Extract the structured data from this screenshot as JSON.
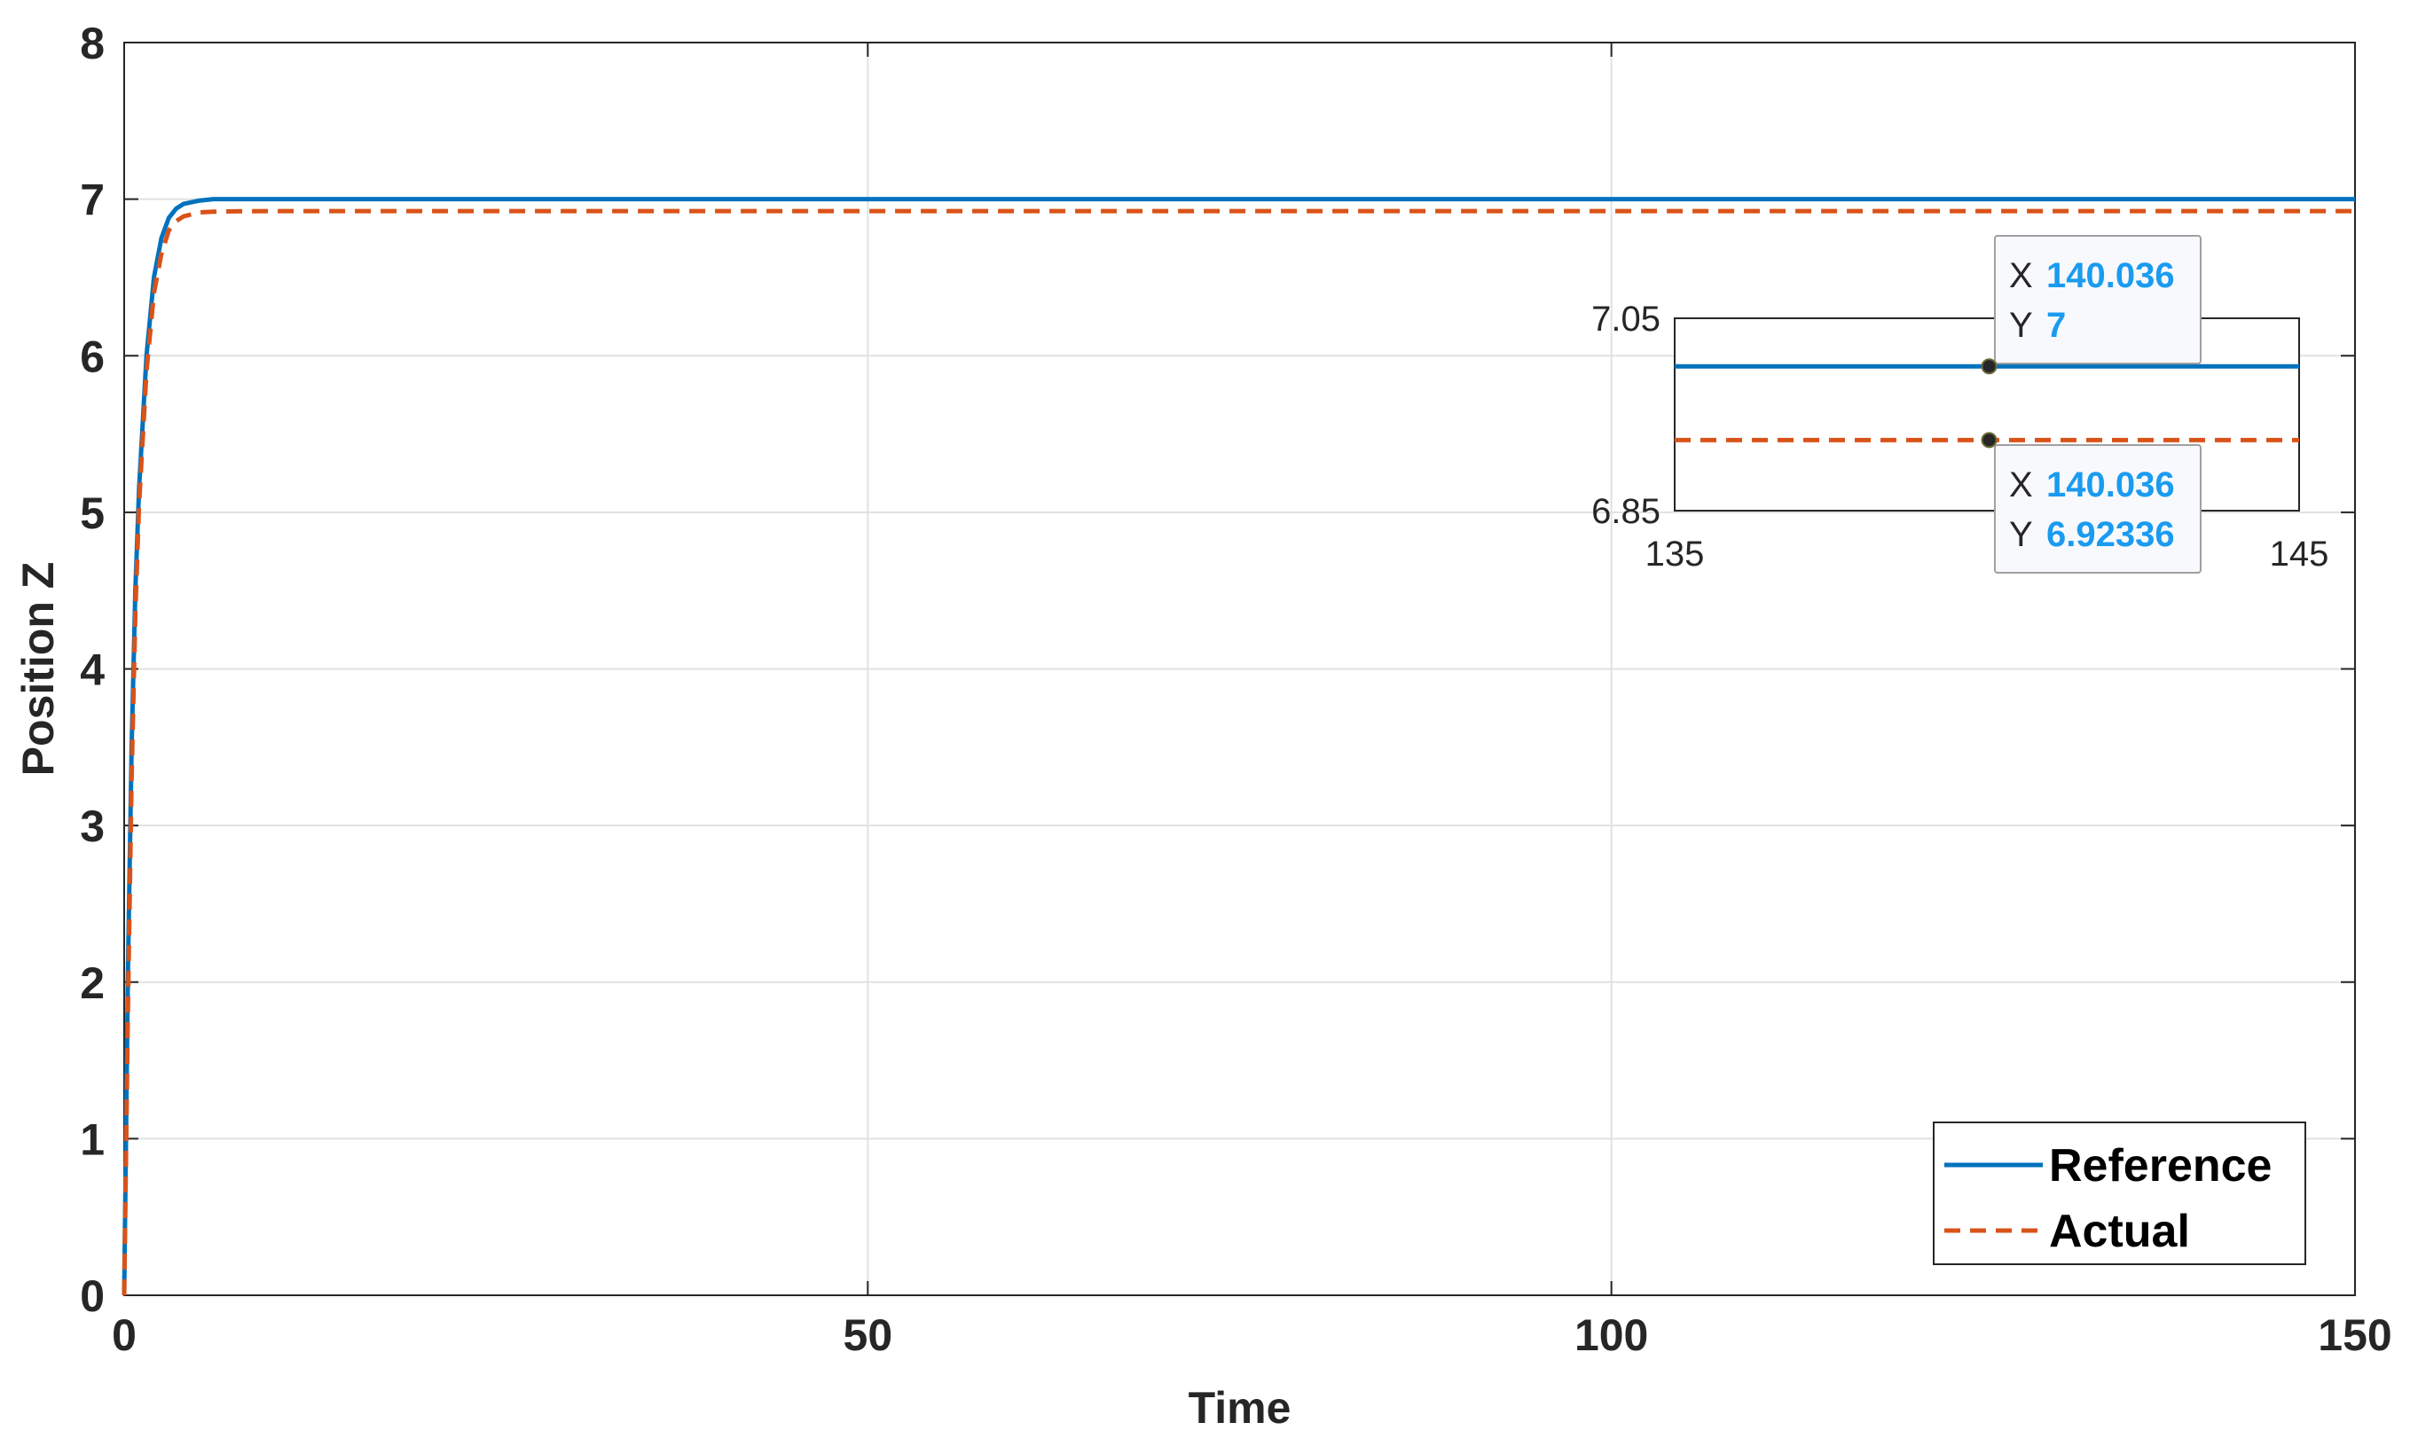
{
  "chart_data": [
    {
      "type": "line",
      "xlabel": "Time",
      "ylabel": "Position Z",
      "xlim": [
        0,
        150
      ],
      "ylim": [
        0,
        8
      ],
      "xticks": [
        0,
        50,
        100,
        150
      ],
      "yticks": [
        0,
        1,
        2,
        3,
        4,
        5,
        6,
        7,
        8
      ],
      "grid": true,
      "legend_position": "bottom-right",
      "series": [
        {
          "name": "Reference",
          "color": "#0072BD",
          "style": "solid",
          "x": [
            0,
            0.25,
            0.5,
            0.75,
            1,
            1.5,
            2,
            2.5,
            3,
            3.5,
            4,
            5,
            6,
            8,
            10,
            150
          ],
          "y": [
            0,
            2.05,
            3.5,
            4.5,
            5.15,
            6.0,
            6.5,
            6.75,
            6.88,
            6.94,
            6.97,
            6.99,
            7.0,
            7.0,
            7.0,
            7.0
          ]
        },
        {
          "name": "Actual",
          "color": "#D95319",
          "style": "dashed",
          "x": [
            0,
            0.25,
            0.5,
            0.75,
            1,
            1.5,
            2,
            2.5,
            3,
            3.5,
            4,
            5,
            6,
            8,
            10,
            150
          ],
          "y": [
            0,
            1.8,
            3.3,
            4.35,
            5.05,
            5.9,
            6.4,
            6.65,
            6.8,
            6.86,
            6.89,
            6.915,
            6.92,
            6.923,
            6.92336,
            6.92336
          ]
        }
      ],
      "datatips": [
        {
          "x_key": "X",
          "x": "140.036",
          "y_key": "Y",
          "y": "7"
        },
        {
          "x_key": "X",
          "x": "140.036",
          "y_key": "Y",
          "y": "6.92336"
        }
      ],
      "datatip_points": [
        {
          "x": 140.036,
          "y": 7
        },
        {
          "x": 140.036,
          "y": 6.92336
        }
      ]
    },
    {
      "type": "line",
      "inset": true,
      "xlim": [
        135,
        145
      ],
      "ylim": [
        6.85,
        7.05
      ],
      "xtick_labels": [
        "135",
        "145"
      ],
      "ytick_labels": [
        "6.85",
        "7.05"
      ],
      "series": [
        {
          "name": "Reference",
          "x": [
            135,
            145
          ],
          "y": [
            7,
            7
          ]
        },
        {
          "name": "Actual",
          "x": [
            135,
            145
          ],
          "y": [
            6.92336,
            6.92336
          ]
        }
      ]
    }
  ]
}
